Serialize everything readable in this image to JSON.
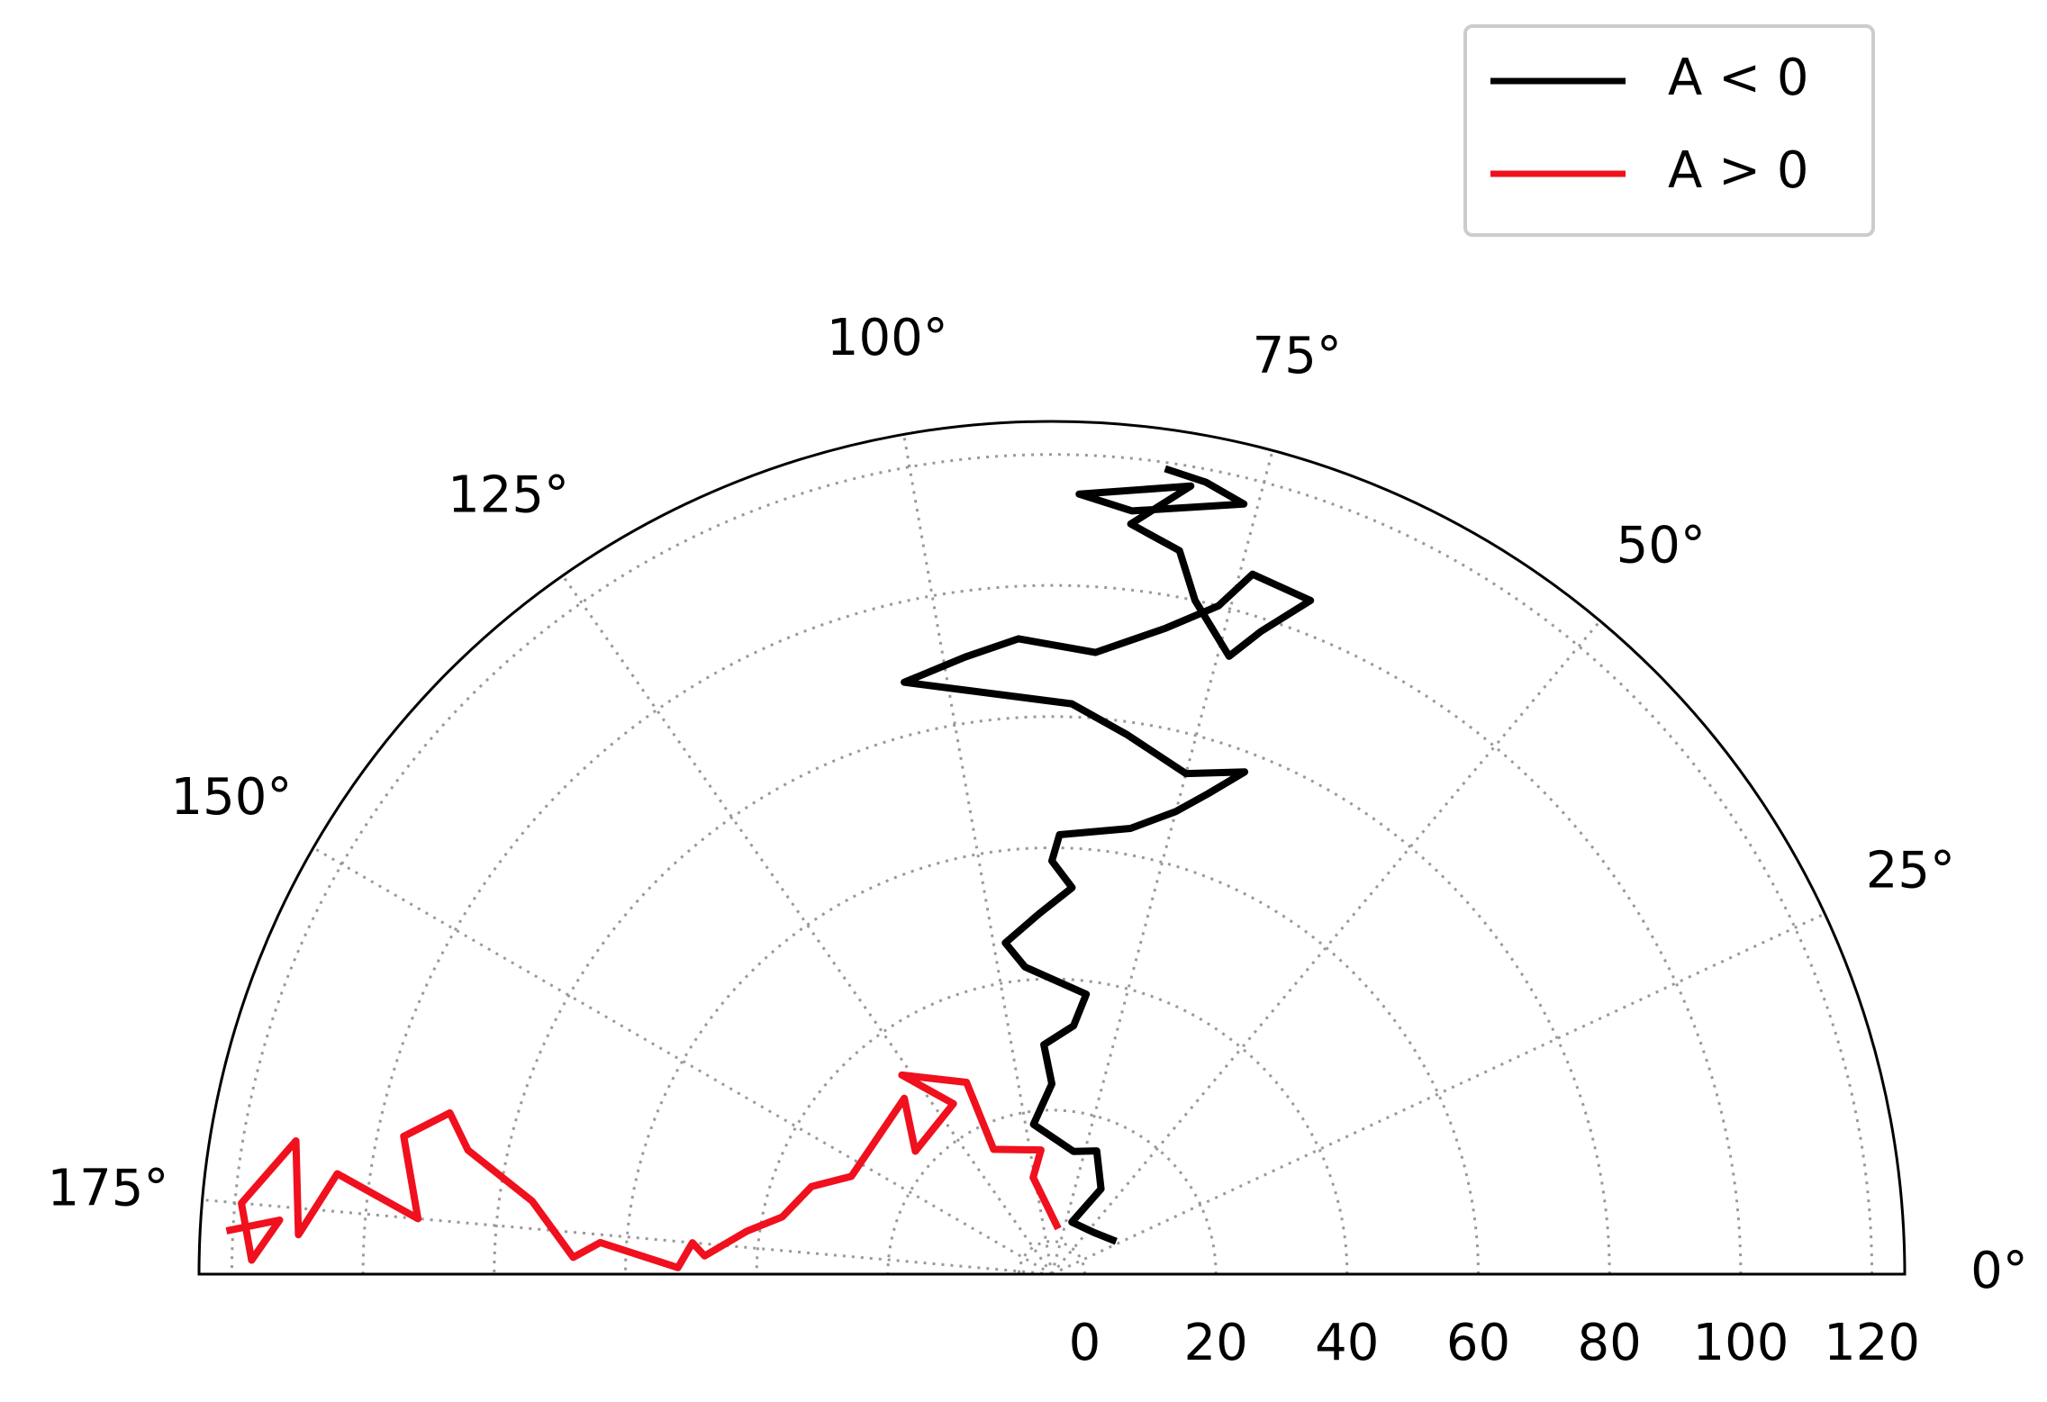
{
  "chart_data": {
    "type": "polar-line",
    "thetalim": [
      0,
      180
    ],
    "xticks": [
      {
        "value": 0,
        "label": "0°"
      },
      {
        "value": 25,
        "label": "25°"
      },
      {
        "value": 50,
        "label": "50°"
      },
      {
        "value": 75,
        "label": "75°"
      },
      {
        "value": 100,
        "label": "100°"
      },
      {
        "value": 125,
        "label": "125°"
      },
      {
        "value": 150,
        "label": "150°"
      },
      {
        "value": 175,
        "label": "175°"
      }
    ],
    "ylim": [
      -5,
      125
    ],
    "yticks": [
      0,
      20,
      40,
      60,
      80,
      100,
      120
    ],
    "grid": true,
    "legend": "upper right",
    "series": [
      {
        "name": "A < 0",
        "color": "#000000",
        "x": [
          27,
          45,
          69,
          60,
          70,
          80,
          97,
          90,
          92,
          85,
          83,
          95,
          98,
          92,
          87,
          90,
          89,
          80,
          75,
          72,
          69,
          75,
          82,
          88,
          104,
          98,
          93,
          86,
          80,
          76,
          74,
          69,
          72,
          74,
          78,
          80,
          84,
          80,
          88,
          84,
          76,
          79,
          82
        ],
        "values": [
          6,
          4,
          3.5,
          10,
          15,
          14,
          18,
          24,
          30,
          33,
          38,
          42,
          46,
          50,
          54,
          58,
          62,
          64,
          68,
          72,
          77,
          74,
          78,
          82,
          88,
          90,
          92,
          90,
          95,
          100,
          106,
          105,
          98,
          93,
          100,
          107,
          110,
          117,
          114,
          112,
          116,
          118,
          119
        ]
      },
      {
        "name": "A > 0",
        "color": "#f0101e",
        "x": [
          82,
          101,
          95,
          115,
          114,
          127,
          120,
          138,
          130,
          154,
          160,
          168,
          172,
          177,
          175,
          179,
          176,
          178,
          172,
          168,
          165,
          168,
          175,
          172,
          177,
          170,
          175,
          179,
          176,
          177
        ],
        "values": [
          2,
          10,
          14,
          16,
          27,
          33,
          25,
          23,
          30,
          29,
          34,
          37,
          42,
          48,
          50,
          52,
          64,
          68,
          75,
          86,
          90,
          96,
          92,
          105,
          110,
          112,
          119,
          117,
          113,
          121
        ]
      }
    ]
  }
}
